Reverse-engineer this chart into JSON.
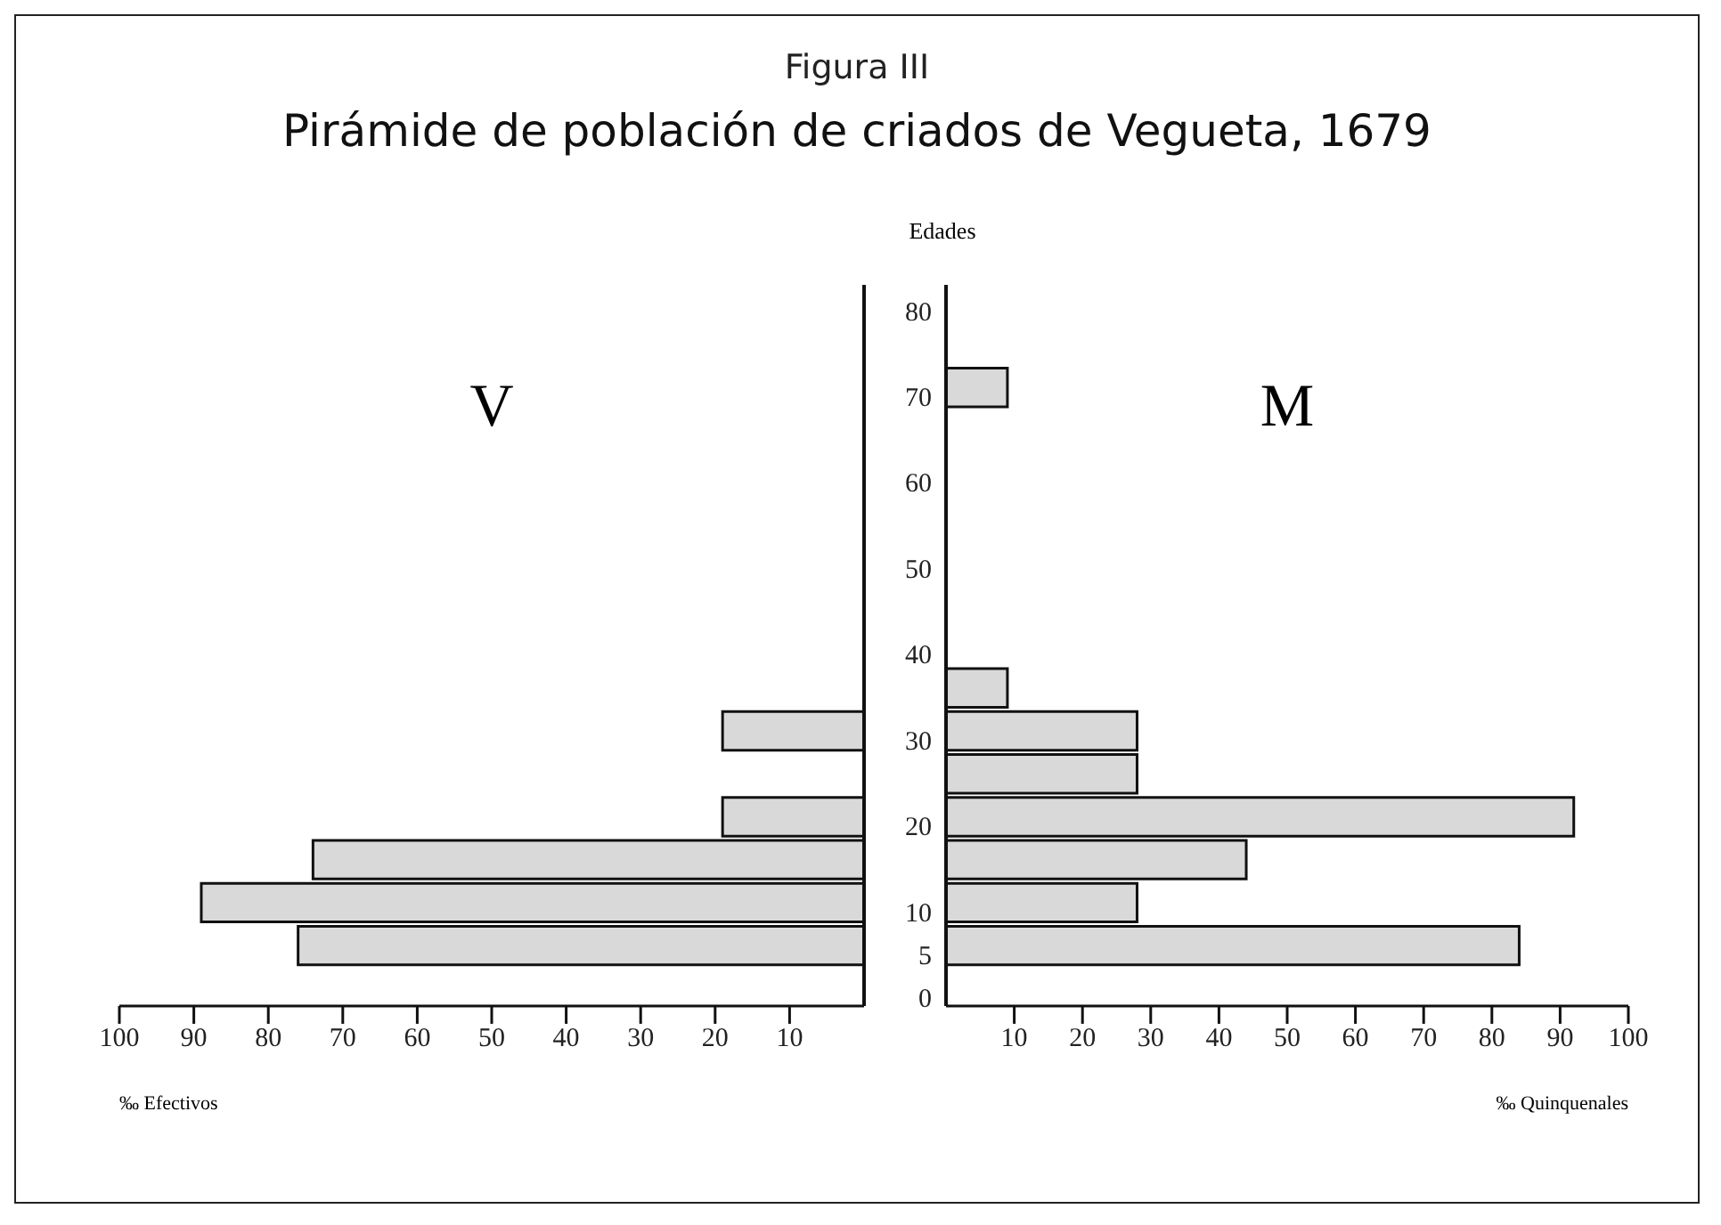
{
  "chart_data": [
    {
      "type": "bar",
      "orientation": "horizontal",
      "subtitle": "Figura III",
      "title": "Pirámide de población de criados de Vegueta, 1679",
      "xlabel": "‰ Efectivos",
      "annotations": [
        "V"
      ],
      "series": [
        {
          "color": "#d9d9d9",
          "x": [
            6,
            11,
            16,
            21,
            31
          ],
          "values": [
            76,
            89,
            74,
            19,
            19
          ]
        }
      ],
      "xlim": [
        100,
        0
      ],
      "xticks": [
        100,
        90,
        80,
        70,
        60,
        50,
        40,
        30,
        20,
        10
      ],
      "ylim": [
        -1,
        83
      ],
      "yticks": [
        0,
        5,
        10,
        20,
        30,
        40,
        50,
        60,
        70,
        80
      ],
      "tick_labels": "x",
      "grid": false,
      "legend": false
    },
    {
      "type": "bar",
      "orientation": "horizontal",
      "ylabel": "Edades",
      "xlabel": "‰ Quinquenales",
      "annotations": [
        "M"
      ],
      "x": [
        6,
        11,
        16,
        21,
        26,
        31,
        36,
        71
      ],
      "series": [
        {
          "color": "#d9d9d9",
          "values": [
            84,
            28,
            44,
            92,
            28,
            28,
            9,
            9
          ]
        }
      ],
      "xlim": [
        0,
        100
      ],
      "xticks": [
        10,
        20,
        30,
        40,
        50,
        60,
        70,
        80,
        90,
        100
      ],
      "ylim": [
        -1,
        83
      ],
      "yticks": [
        0,
        5,
        10,
        20,
        30,
        40,
        50,
        60,
        70,
        80
      ],
      "grid": false,
      "legend": false
    }
  ]
}
